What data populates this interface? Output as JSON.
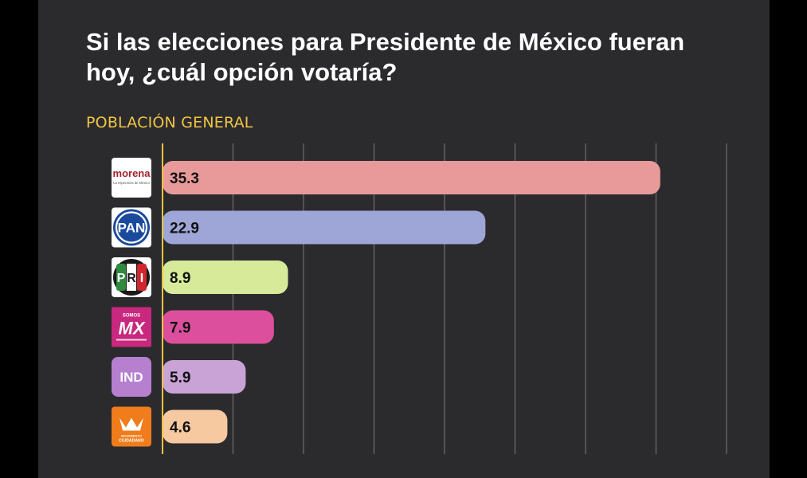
{
  "title": "Si las elecciones para Presidente de México fueran hoy, ¿cuál opción votaría?",
  "subtitle": "POBLACIÓN GENERAL",
  "colors": {
    "background": "#000000",
    "card": "#2b2b2e",
    "subtitle": "#f0c544",
    "axis": "#f0c544",
    "grid": "#6e6e72"
  },
  "chart_data": {
    "type": "bar",
    "orientation": "horizontal",
    "grid": true,
    "xlim": [
      0,
      40
    ],
    "categories": [
      "morena",
      "PAN",
      "PRI",
      "Somos MX",
      "IND",
      "Movimiento Ciudadano"
    ],
    "values": [
      35.3,
      22.9,
      8.9,
      7.9,
      5.9,
      4.6
    ],
    "value_labels": [
      "35.3",
      "22.9",
      "8.9",
      "7.9",
      "5.9",
      "4.6"
    ],
    "bar_colors": [
      "#e89a9a",
      "#9ea6d8",
      "#d6ea9a",
      "#dc4f9c",
      "#c9a2d6",
      "#f7c9a0"
    ],
    "logos": [
      {
        "icon": "morena-logo",
        "text": "morena",
        "subtext": "La esperanza de México"
      },
      {
        "icon": "pan-logo",
        "text": "PAN"
      },
      {
        "icon": "pri-logo",
        "text": "PRI"
      },
      {
        "icon": "somos-mx-logo",
        "text": "MX",
        "subtext": "SOMOS"
      },
      {
        "icon": "ind-logo",
        "text": "IND"
      },
      {
        "icon": "movimiento-ciudadano-logo",
        "text": "CIUDADANO",
        "subtext": "MOVIMIENTO"
      }
    ]
  }
}
